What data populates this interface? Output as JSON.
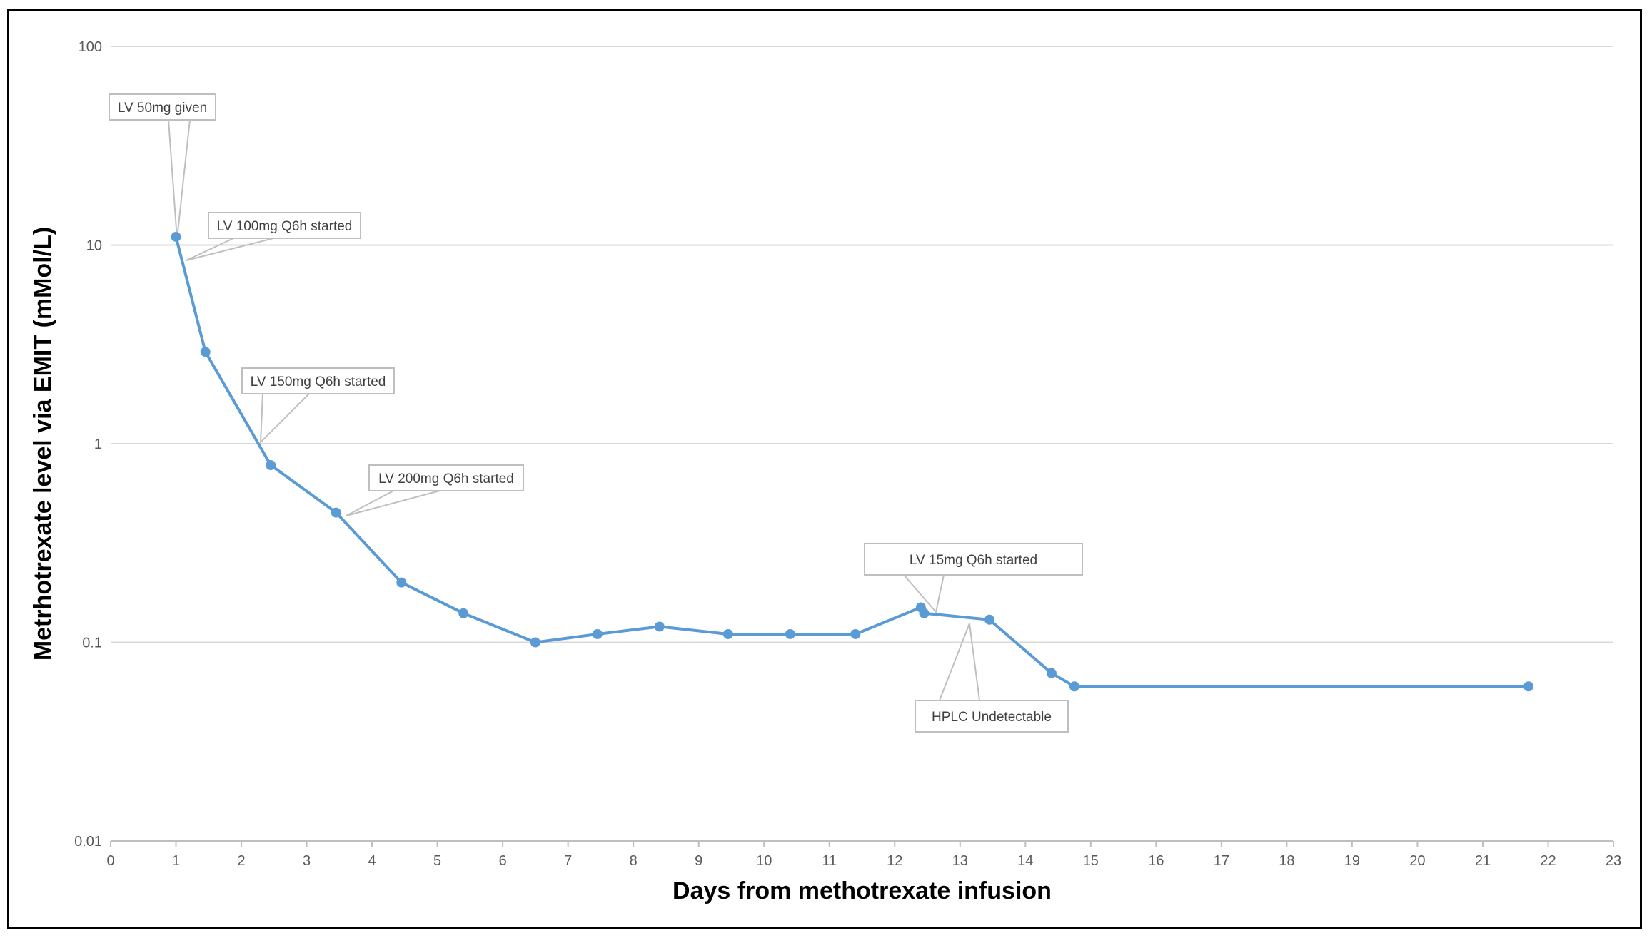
{
  "chart_data": {
    "type": "line",
    "title": "",
    "xlabel": "Days from methotrexate infusion",
    "ylabel": "Metrhotrexate level via EMIT (mMol/L)",
    "x_scale": "linear",
    "y_scale": "log",
    "xlim": [
      0,
      23
    ],
    "ylim": [
      0.01,
      100
    ],
    "x_ticks": [
      "0",
      "1",
      "2",
      "3",
      "4",
      "5",
      "6",
      "7",
      "8",
      "9",
      "10",
      "11",
      "12",
      "13",
      "14",
      "15",
      "16",
      "17",
      "18",
      "19",
      "20",
      "21",
      "22",
      "23"
    ],
    "y_ticks": [
      "0.01",
      "0.1",
      "1",
      "10",
      "100"
    ],
    "grid": "horizontal major gridlines",
    "legend": "none",
    "colors": {
      "series": "#5b9bd5",
      "gridline": "#d9d9d9",
      "callout_border": "#bfbfbf"
    },
    "series": [
      {
        "x": [
          1.0,
          1.45,
          2.45,
          3.45,
          4.45,
          5.4,
          6.5,
          7.45,
          8.4,
          9.45,
          10.4,
          11.4,
          12.4,
          12.45,
          13.45,
          14.4,
          14.75,
          21.7
        ],
        "y": [
          11,
          2.9,
          0.78,
          0.45,
          0.2,
          0.14,
          0.1,
          0.11,
          0.12,
          0.11,
          0.11,
          0.11,
          0.15,
          0.14,
          0.13,
          0.07,
          0.06,
          0.06
        ]
      }
    ],
    "annotations": [
      {
        "text": "LV 50mg given",
        "x": 1.0,
        "y": 11
      },
      {
        "text": "LV 100mg Q6h started",
        "x": 1.1,
        "y": 8.5
      },
      {
        "text": "LV 150mg Q6h started",
        "x": 2.3,
        "y": 1.0
      },
      {
        "text": "LV 200mg Q6h started",
        "x": 3.5,
        "y": 0.45
      },
      {
        "text": "LV 15mg Q6h started",
        "x": 12.7,
        "y": 0.145
      },
      {
        "text": "HPLC Undetectable",
        "x": 13.0,
        "y": 0.135
      }
    ]
  }
}
